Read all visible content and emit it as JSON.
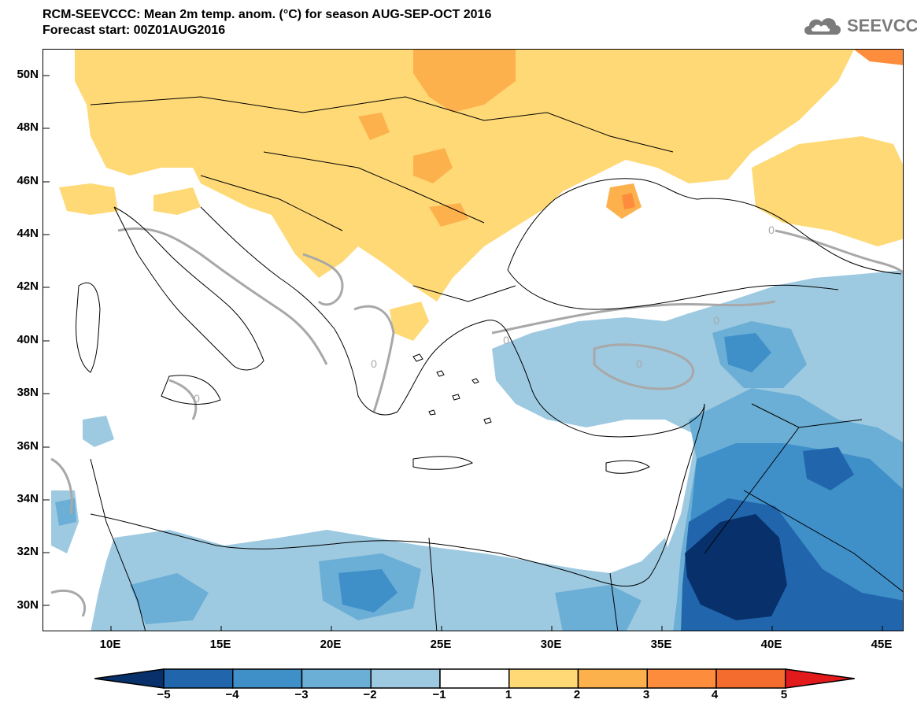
{
  "header": {
    "title": "RCM-SEEVCCC: Mean 2m temp. anom. (°C) for season AUG-SEP-OCT 2016",
    "subtitle": "Forecast start: 00Z01AUG2016"
  },
  "logo": {
    "text": "SEEVCCC",
    "icon": "cloud-icon"
  },
  "map": {
    "y_ticks": [
      "50N",
      "48N",
      "46N",
      "44N",
      "42N",
      "40N",
      "38N",
      "36N",
      "34N",
      "32N",
      "30N"
    ],
    "x_ticks": [
      "10E",
      "15E",
      "20E",
      "25E",
      "30E",
      "35E",
      "40E",
      "45E"
    ],
    "lon_range": [
      7,
      46
    ],
    "lat_range": [
      29,
      51
    ],
    "contour_label": "0"
  },
  "colorbar": {
    "labels": [
      "−5",
      "−4",
      "−3",
      "−2",
      "−1",
      "1",
      "2",
      "3",
      "4",
      "5"
    ],
    "colors": [
      "#08306b",
      "#2166ac",
      "#3f8fc9",
      "#6baed6",
      "#9ecae1",
      "#ffffff",
      "#fed976",
      "#fdb14d",
      "#fd8d3c",
      "#f46d2f",
      "#e31a1c"
    ]
  },
  "colors": {
    "warm1": "#fed976",
    "warm2": "#fdb14d",
    "warm3": "#fd8d3c",
    "warm4": "#ee4a28",
    "cool1": "#9ecae1",
    "cool2": "#6baed6",
    "cool3": "#3f8fc9",
    "cool4": "#2166ac",
    "cool5": "#08306b",
    "contour": "#a8a8a8"
  }
}
